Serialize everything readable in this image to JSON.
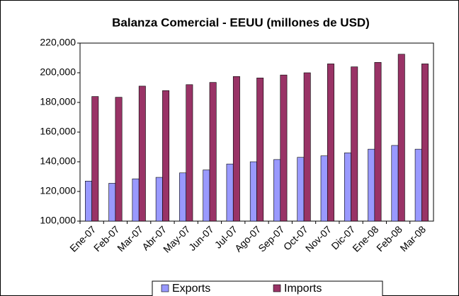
{
  "chart_data": {
    "type": "bar",
    "title": "Balanza Comercial - EEUU (millones de USD)",
    "categories": [
      "Ene-07",
      "Feb-07",
      "Mar-07",
      "Abr-07",
      "May-07",
      "Jun-07",
      "Jul-07",
      "Ago-07",
      "Sep-07",
      "Oct-07",
      "Nov-07",
      "Dic-07",
      "Ene-08",
      "Feb-08",
      "Mar-08"
    ],
    "series": [
      {
        "name": "Exports",
        "color": "#9999ff",
        "values": [
          127000,
          125500,
          128500,
          129500,
          132500,
          134500,
          138500,
          140000,
          141500,
          143000,
          144000,
          146000,
          148500,
          151000,
          148500
        ]
      },
      {
        "name": "Imports",
        "color": "#993366",
        "values": [
          184000,
          183500,
          191000,
          188000,
          192000,
          193500,
          197500,
          196500,
          198500,
          200000,
          206000,
          204000,
          207000,
          212500,
          206000
        ]
      }
    ],
    "ylim": [
      100000,
      220000
    ],
    "yticks": [
      {
        "value": 100000,
        "label": "100,000"
      },
      {
        "value": 120000,
        "label": "120,000"
      },
      {
        "value": 140000,
        "label": "140,000"
      },
      {
        "value": 160000,
        "label": "160,000"
      },
      {
        "value": 180000,
        "label": "180,000"
      },
      {
        "value": 200000,
        "label": "200,000"
      },
      {
        "value": 220000,
        "label": "220,000"
      }
    ],
    "grid": false,
    "legend": "bottom"
  }
}
